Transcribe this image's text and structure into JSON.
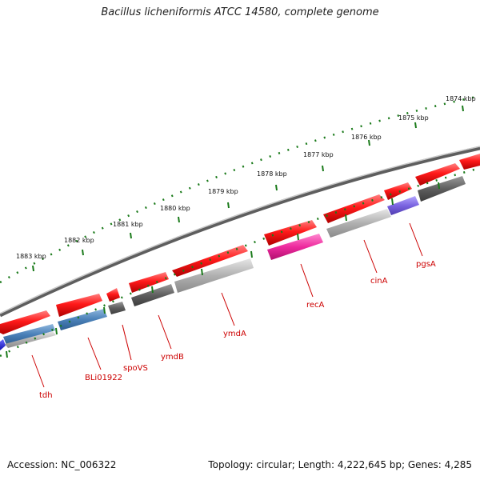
{
  "title": "Bacillus licheniformis ATCC 14580, complete genome",
  "footer": {
    "accession": "Accession: NC_006322",
    "summary": "Topology: circular; Length: 4,222,645 bp; Genes: 4,285"
  },
  "scale_labels": [
    "1874 kbp",
    "1875 kbp",
    "1876 kbp",
    "1877 kbp",
    "1878 kbp",
    "1879 kbp",
    "1880 kbp",
    "1881 kbp",
    "1882 kbp",
    "1883 kbp"
  ],
  "gene_labels": [
    "tdh",
    "BLi01922",
    "spoVS",
    "ymdB",
    "ymdA",
    "recA",
    "cinA",
    "pgsA"
  ],
  "colors": {
    "backbone": "#7a7a7a",
    "forward_gene": "#ff1a1a",
    "reverse_gene": "#a8a8a8",
    "label": "#cc0000",
    "scale_ticks": "#1a7a1a"
  }
}
